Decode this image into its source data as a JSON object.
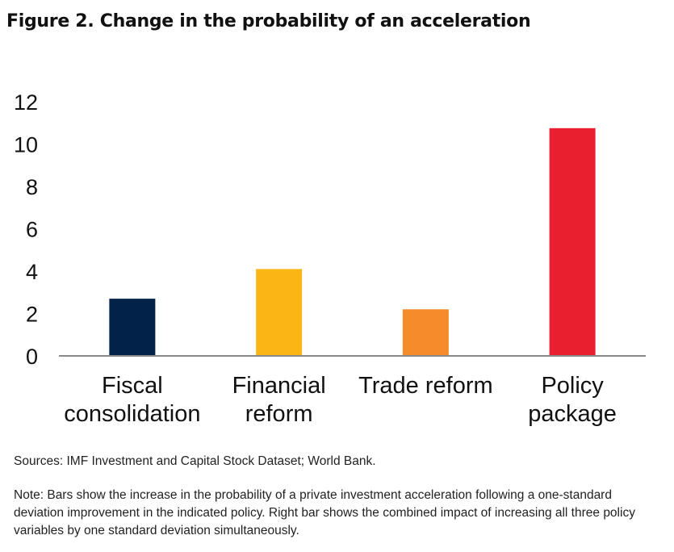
{
  "chart_data": {
    "type": "bar",
    "title": "Figure 2. Change in the probability of an acceleration",
    "xlabel": "",
    "ylabel": "",
    "ylim": [
      0,
      12
    ],
    "yticks": [
      0,
      2,
      4,
      6,
      8,
      10,
      12
    ],
    "grid": false,
    "legend": "none",
    "categories": [
      [
        "Fiscal",
        "consolidation"
      ],
      [
        "Financial",
        "reform"
      ],
      [
        "Trade reform"
      ],
      [
        "Policy",
        "package"
      ]
    ],
    "category_names": [
      "Fiscal consolidation",
      "Financial reform",
      "Trade reform",
      "Policy package"
    ],
    "values": [
      2.7,
      4.1,
      2.2,
      10.75
    ],
    "colors": [
      "#03224a",
      "#fbb615",
      "#f68b2b",
      "#e91f30"
    ]
  },
  "footer": {
    "sources": "Sources: IMF Investment and Capital Stock Dataset; World Bank.",
    "note": "Note: Bars show the increase in the probability of a private investment acceleration following a one-standard deviation improvement in the indicated policy. Right bar shows the combined impact of increasing all three policy variables by one standard deviation simultaneously."
  }
}
